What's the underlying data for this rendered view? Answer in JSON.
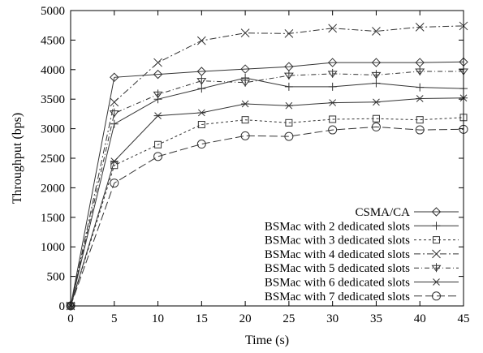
{
  "chart_data": {
    "type": "line",
    "title": "",
    "xlabel": "Time (s)",
    "ylabel": "Throughput (bps)",
    "xlim": [
      0,
      45
    ],
    "ylim": [
      0,
      5000
    ],
    "x_ticks": [
      "0",
      "5",
      "10",
      "15",
      "20",
      "25",
      "30",
      "35",
      "40",
      "45"
    ],
    "y_ticks": [
      "0",
      "500",
      "1000",
      "1500",
      "2000",
      "2500",
      "3000",
      "3500",
      "4000",
      "4500",
      "5000"
    ],
    "grid": false,
    "legend_position": "bottom-right",
    "x": [
      0,
      5,
      10,
      15,
      20,
      25,
      30,
      35,
      40,
      45
    ],
    "series": [
      {
        "name": "CSMA/CA",
        "marker": "diamond",
        "dash": "",
        "values": [
          0,
          3870,
          3920,
          3970,
          4010,
          4050,
          4120,
          4120,
          4120,
          4130
        ]
      },
      {
        "name": "BSMac with 2 dedicated slots",
        "marker": "plus",
        "dash": "",
        "values": [
          0,
          3080,
          3500,
          3680,
          3860,
          3710,
          3710,
          3770,
          3700,
          3680
        ]
      },
      {
        "name": "BSMac with 3 dedicated slots",
        "marker": "square",
        "dash": "3,3",
        "values": [
          0,
          2380,
          2730,
          3070,
          3150,
          3100,
          3160,
          3170,
          3150,
          3190
        ]
      },
      {
        "name": "BSMac with 4 dedicated slots",
        "marker": "x",
        "dash": "8,3,2,3",
        "values": [
          0,
          3450,
          4120,
          4490,
          4620,
          4610,
          4700,
          4650,
          4720,
          4740
        ]
      },
      {
        "name": "BSMac with 5 dedicated slots",
        "marker": "triangle-down",
        "dash": "6,3,1,3",
        "values": [
          0,
          3260,
          3580,
          3810,
          3780,
          3900,
          3930,
          3910,
          3970,
          3970
        ]
      },
      {
        "name": "BSMac with 6 dedicated slots",
        "marker": "asterisk",
        "dash": "",
        "values": [
          0,
          2450,
          3220,
          3270,
          3420,
          3390,
          3440,
          3450,
          3510,
          3520
        ]
      },
      {
        "name": "BSMac with 7 dedicated slots",
        "marker": "circle",
        "dash": "10,4",
        "values": [
          0,
          2080,
          2530,
          2740,
          2880,
          2870,
          2980,
          3030,
          2980,
          2990
        ]
      }
    ]
  }
}
